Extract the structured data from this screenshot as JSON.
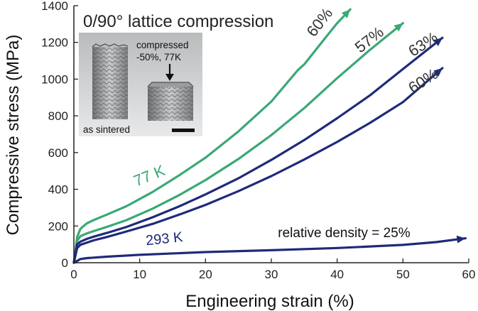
{
  "chart_data": {
    "type": "line",
    "title": "0/90° lattice compression",
    "xlabel": "Engineering strain (%)",
    "ylabel": "Compressive stress (MPa)",
    "xlim": [
      0,
      60
    ],
    "ylim": [
      0,
      1400
    ],
    "x_ticks": [
      0,
      10,
      20,
      30,
      40,
      50,
      60
    ],
    "y_ticks": [
      0,
      200,
      400,
      600,
      800,
      1000,
      1200,
      1400
    ],
    "grid": false,
    "colors": {
      "green": "#3aa876",
      "navy": "#1f2a7a"
    },
    "series": [
      {
        "color": "#3aa876",
        "x": [
          0,
          0.5,
          1,
          2,
          3,
          5,
          8,
          12,
          16,
          20,
          25,
          30,
          34,
          35,
          38,
          40,
          42
        ],
        "y": [
          0,
          140,
          185,
          215,
          232,
          262,
          308,
          386,
          476,
          572,
          715,
          878,
          1048,
          1080,
          1215,
          1305,
          1380
        ]
      },
      {
        "color": "#3aa876",
        "x": [
          0,
          0.5,
          1,
          2,
          3,
          5,
          8,
          12,
          16,
          20,
          25,
          30,
          35,
          40,
          45,
          50
        ],
        "y": [
          0,
          120,
          145,
          160,
          172,
          195,
          232,
          295,
          368,
          450,
          565,
          695,
          842,
          1005,
          1160,
          1305
        ]
      },
      {
        "color": "#1f2a7a",
        "x": [
          0,
          0.5,
          1,
          2,
          3,
          5,
          8,
          12,
          16,
          20,
          25,
          30,
          35,
          40,
          45,
          50,
          56
        ],
        "y": [
          0,
          100,
          115,
          130,
          142,
          162,
          195,
          248,
          307,
          372,
          460,
          560,
          668,
          787,
          912,
          1055,
          1225
        ]
      },
      {
        "color": "#1f2a7a",
        "x": [
          0,
          0.5,
          1,
          2,
          3,
          5,
          8,
          12,
          16,
          20,
          25,
          30,
          35,
          40,
          45,
          50,
          56
        ],
        "y": [
          0,
          80,
          98,
          110,
          122,
          140,
          170,
          212,
          262,
          315,
          390,
          472,
          562,
          658,
          762,
          875,
          1060
        ]
      },
      {
        "color": "#1f2a7a",
        "x": [
          0,
          1,
          2,
          5,
          10,
          20,
          30,
          40,
          50,
          55,
          59.5
        ],
        "y": [
          0,
          20,
          25,
          33,
          43,
          58,
          68,
          80,
          97,
          112,
          133
        ]
      }
    ],
    "annotations": [
      {
        "text": "60%",
        "x": 36.5,
        "y": 1225,
        "rotate": -52,
        "color": "#333333",
        "size": 22
      },
      {
        "text": "57%",
        "x": 43.5,
        "y": 1140,
        "rotate": -38,
        "color": "#333333",
        "size": 22
      },
      {
        "text": "63%",
        "x": 51.5,
        "y": 1120,
        "rotate": -33,
        "color": "#333333",
        "size": 22
      },
      {
        "text": "60%",
        "x": 51.5,
        "y": 920,
        "rotate": -33,
        "color": "#333333",
        "size": 22
      },
      {
        "text": "77 K",
        "x": 9.5,
        "y": 415,
        "rotate": -22,
        "color": "#3aa876",
        "size": 22
      },
      {
        "text": "293 K",
        "x": 11,
        "y": 95,
        "rotate": -6,
        "color": "#1f2a7a",
        "size": 20
      },
      {
        "text": "relative density = 25%",
        "x": 31,
        "y": 140,
        "rotate": 0,
        "color": "#111111",
        "size": 19
      }
    ],
    "inset": {
      "label_left": "as sintered",
      "label_right_line1": "compressed",
      "label_right_line2": "-50%, 77K"
    }
  }
}
